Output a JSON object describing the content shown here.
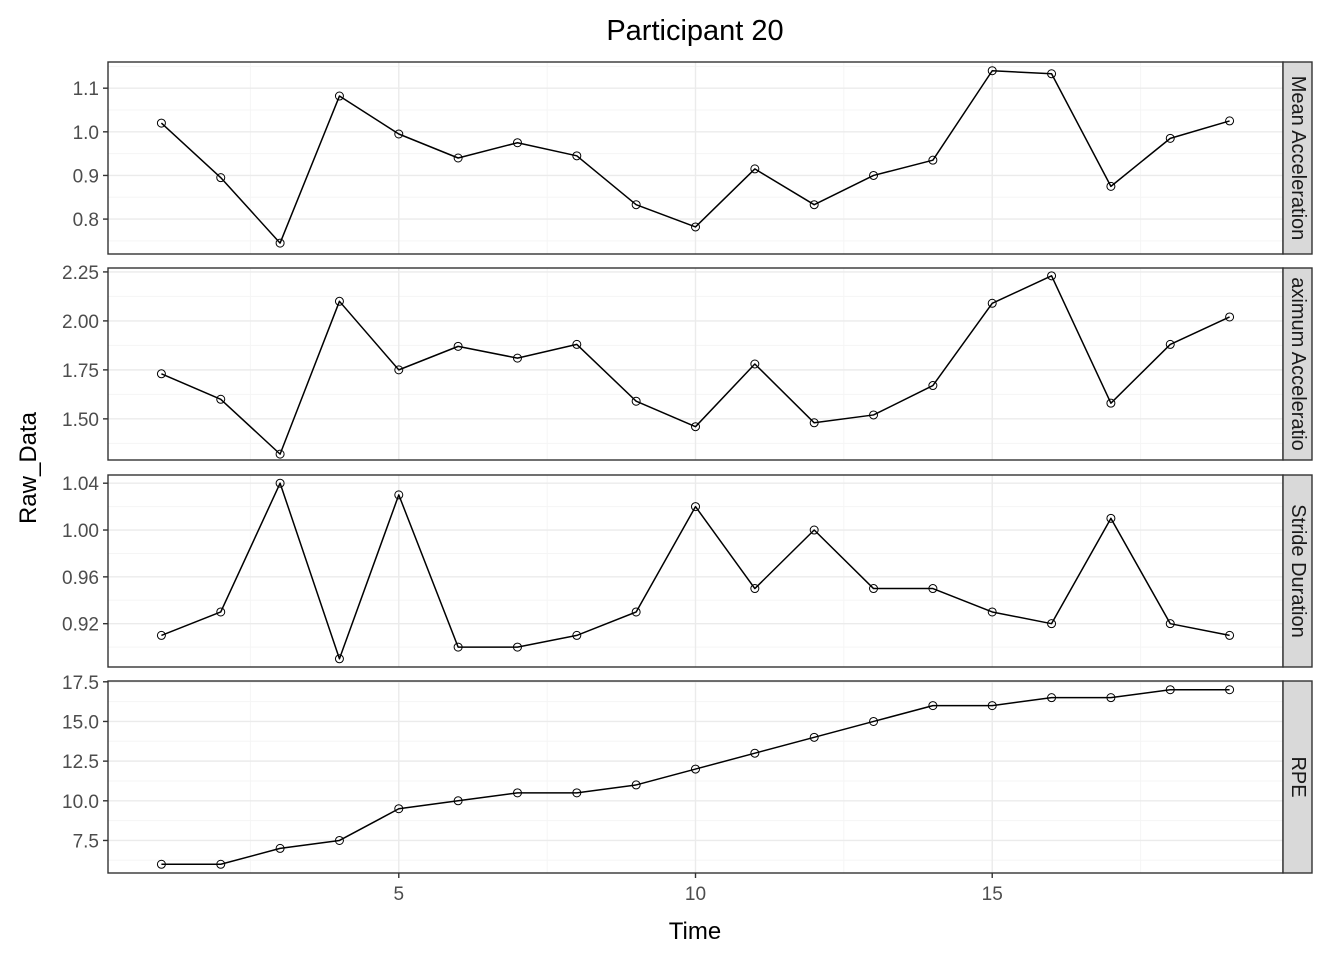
{
  "chart_data": {
    "type": "line",
    "title": "Participant 20",
    "xlabel": "Time",
    "ylabel": "Raw_Data",
    "x": [
      1,
      2,
      3,
      4,
      5,
      6,
      7,
      8,
      9,
      10,
      11,
      12,
      13,
      14,
      15,
      16,
      17,
      18,
      19
    ],
    "xlim": [
      0.1,
      19.9
    ],
    "x_ticks": [
      5,
      10,
      15
    ],
    "grid": true,
    "legend": "none",
    "facet_layout": "rows",
    "colors": {
      "line": "#000000",
      "point_stroke": "#000000",
      "strip_bg": "#d9d9d9",
      "grid_major": "#ebebeb",
      "grid_minor": "#f5f5f5",
      "panel_border": "#333333"
    },
    "panels": [
      {
        "label": "Mean Acceleration",
        "strip_text": "Mean Acceleration",
        "values": [
          1.02,
          0.895,
          0.745,
          1.082,
          0.995,
          0.94,
          0.975,
          0.945,
          0.833,
          0.782,
          0.915,
          0.833,
          0.9,
          0.935,
          1.14,
          1.133,
          0.875,
          0.985,
          1.025
        ],
        "ylim": [
          0.72,
          1.16
        ],
        "y_ticks": [
          0.8,
          0.9,
          1.0,
          1.1
        ],
        "y_tick_labels": [
          "0.8",
          "0.9",
          "1.0",
          "1.1"
        ],
        "y_minor": [
          0.75,
          0.85,
          0.95,
          1.05,
          1.15
        ]
      },
      {
        "label": "Maximum Acceleration",
        "strip_text": "aximum Acceleratio",
        "values": [
          1.73,
          1.6,
          1.32,
          2.1,
          1.75,
          1.87,
          1.81,
          1.88,
          1.59,
          1.46,
          1.78,
          1.48,
          1.52,
          1.67,
          2.09,
          2.23,
          1.58,
          1.88,
          2.02
        ],
        "ylim": [
          1.29,
          2.27
        ],
        "y_ticks": [
          1.5,
          1.75,
          2.0,
          2.25
        ],
        "y_tick_labels": [
          "1.50",
          "1.75",
          "2.00",
          "2.25"
        ],
        "y_minor": [
          1.375,
          1.625,
          1.875,
          2.125
        ]
      },
      {
        "label": "Stride Duration",
        "strip_text": "Stride Duration",
        "values": [
          0.91,
          0.93,
          1.04,
          0.89,
          1.03,
          0.9,
          0.9,
          0.91,
          0.93,
          1.02,
          0.95,
          1.0,
          0.95,
          0.95,
          0.93,
          0.92,
          1.01,
          0.92,
          0.91
        ],
        "ylim": [
          0.883,
          1.047
        ],
        "y_ticks": [
          0.92,
          0.96,
          1.0,
          1.04
        ],
        "y_tick_labels": [
          "0.92",
          "0.96",
          "1.00",
          "1.04"
        ],
        "y_minor": [
          0.9,
          0.94,
          0.98,
          1.02
        ]
      },
      {
        "label": "RPE",
        "strip_text": "RPE",
        "values": [
          6.0,
          6.0,
          7.0,
          7.5,
          9.5,
          10.0,
          10.5,
          10.5,
          11.0,
          12.0,
          13.0,
          14.0,
          15.0,
          16.0,
          16.0,
          16.5,
          16.5,
          17.0,
          17.0
        ],
        "ylim": [
          5.45,
          17.55
        ],
        "y_ticks": [
          7.5,
          10.0,
          12.5,
          15.0,
          17.5
        ],
        "y_tick_labels": [
          "7.5",
          "10.0",
          "12.5",
          "15.0",
          "17.5"
        ],
        "y_minor": [
          6.25,
          8.75,
          11.25,
          13.75,
          16.25
        ]
      }
    ]
  }
}
